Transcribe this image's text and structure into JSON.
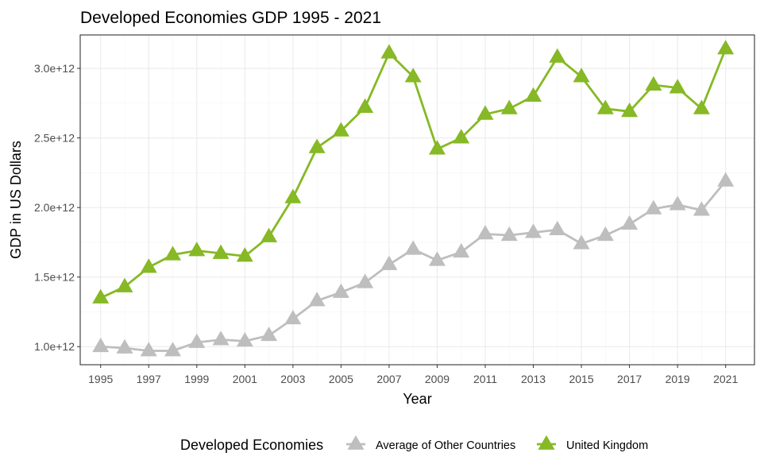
{
  "chart_data": {
    "type": "line",
    "title": "Developed Economies GDP 1995 - 2021",
    "xlabel": "Year",
    "ylabel": "GDP in US Dollars",
    "x": [
      1995,
      1996,
      1997,
      1998,
      1999,
      2000,
      2001,
      2002,
      2003,
      2004,
      2005,
      2006,
      2007,
      2008,
      2009,
      2010,
      2011,
      2012,
      2013,
      2014,
      2015,
      2016,
      2017,
      2018,
      2019,
      2020,
      2021
    ],
    "x_ticks": [
      "1995",
      "1997",
      "1999",
      "2001",
      "2003",
      "2005",
      "2007",
      "2009",
      "2011",
      "2013",
      "2015",
      "2017",
      "2019",
      "2021"
    ],
    "xlim": [
      1994.15,
      2022.2
    ],
    "y_ticks": [
      {
        "value": 1000000000000.0,
        "label": "1.0e+12"
      },
      {
        "value": 1500000000000.0,
        "label": "1.5e+12"
      },
      {
        "value": 2000000000000.0,
        "label": "2.0e+12"
      },
      {
        "value": 2500000000000.0,
        "label": "2.5e+12"
      },
      {
        "value": 3000000000000.0,
        "label": "3.0e+12"
      }
    ],
    "ylim": [
      870000000000.0,
      3240000000000.0
    ],
    "grid": true,
    "legend_title": "Developed Economies",
    "legend_position": "bottom",
    "marker": "triangle",
    "series": [
      {
        "name": "Average of Other Countries",
        "color": "#bebebe",
        "values": [
          1000000000000.0,
          990000000000.0,
          970000000000.0,
          970000000000.0,
          1030000000000.0,
          1050000000000.0,
          1040000000000.0,
          1080000000000.0,
          1200000000000.0,
          1330000000000.0,
          1390000000000.0,
          1460000000000.0,
          1590000000000.0,
          1700000000000.0,
          1620000000000.0,
          1680000000000.0,
          1810000000000.0,
          1800000000000.0,
          1820000000000.0,
          1840000000000.0,
          1740000000000.0,
          1800000000000.0,
          1880000000000.0,
          1990000000000.0,
          2020000000000.0,
          1980000000000.0,
          2190000000000.0
        ]
      },
      {
        "name": "United Kingdom",
        "color": "#86b925",
        "values": [
          1350000000000.0,
          1430000000000.0,
          1570000000000.0,
          1660000000000.0,
          1690000000000.0,
          1670000000000.0,
          1650000000000.0,
          1790000000000.0,
          2070000000000.0,
          2430000000000.0,
          2550000000000.0,
          2720000000000.0,
          3110000000000.0,
          2940000000000.0,
          2420000000000.0,
          2500000000000.0,
          2670000000000.0,
          2710000000000.0,
          2800000000000.0,
          3080000000000.0,
          2940000000000.0,
          2710000000000.0,
          2690000000000.0,
          2880000000000.0,
          2860000000000.0,
          2710000000000.0,
          3140000000000.0
        ]
      }
    ]
  }
}
